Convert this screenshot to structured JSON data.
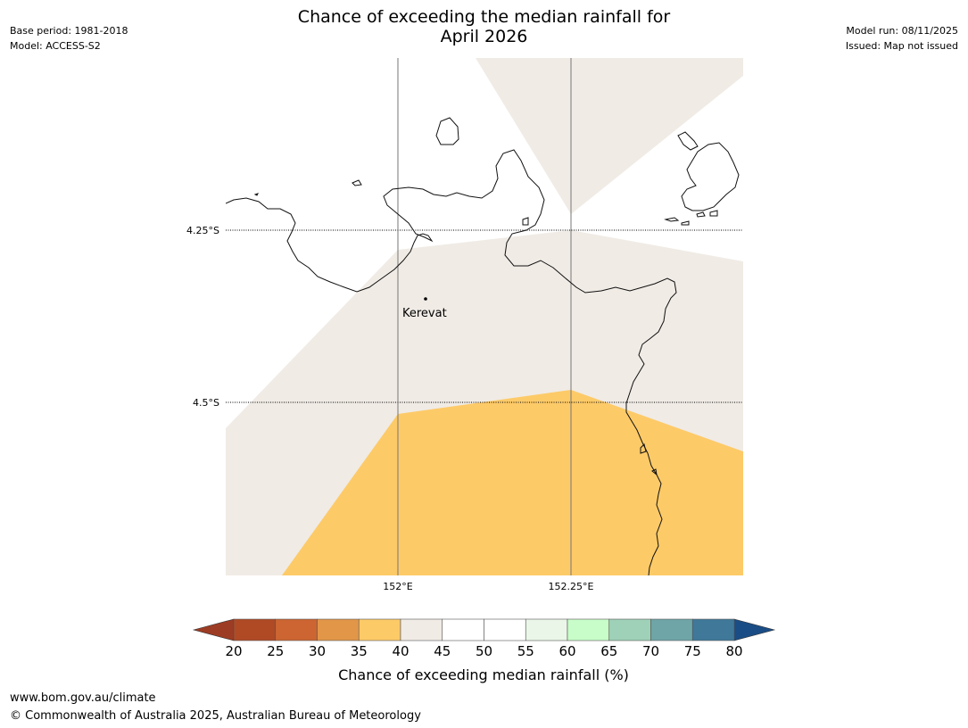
{
  "title_line1": "Chance of exceeding the median rainfall for",
  "title_line2": "April 2026",
  "meta_left": {
    "base_period": "Base period: 1981-2018",
    "model": "Model: ACCESS-S2"
  },
  "meta_right": {
    "model_run": "Model run: 08/11/2025",
    "issued": "Issued: Map not issued"
  },
  "map": {
    "lat_labels": [
      "4.25°S",
      "4.5°S"
    ],
    "lon_labels": [
      "152°E",
      "152.25°E"
    ],
    "place": "Kerevat",
    "region_colors": {
      "40-45": "#f0ebe5",
      "35-40": "#fdca68",
      "45-50": "#ffffff"
    }
  },
  "colorbar": {
    "ticks": [
      "20",
      "25",
      "30",
      "35",
      "40",
      "45",
      "50",
      "55",
      "60",
      "65",
      "70",
      "75",
      "80"
    ],
    "colors": [
      "#b04a25",
      "#cc6531",
      "#e29648",
      "#fdca68",
      "#f0ebe5",
      "#ffffff",
      "#ffffff",
      "#eaf6e7",
      "#c8fcc8",
      "#9fd1b8",
      "#6fa5a6",
      "#3f7899"
    ],
    "under_color": "#9d3c24",
    "over_color": "#1a4d85",
    "label": "Chance of exceeding median rainfall (%)"
  },
  "footer": {
    "url": "www.bom.gov.au/climate",
    "copyright": "© Commonwealth of Australia 2025, Australian Bureau of Meteorology"
  }
}
